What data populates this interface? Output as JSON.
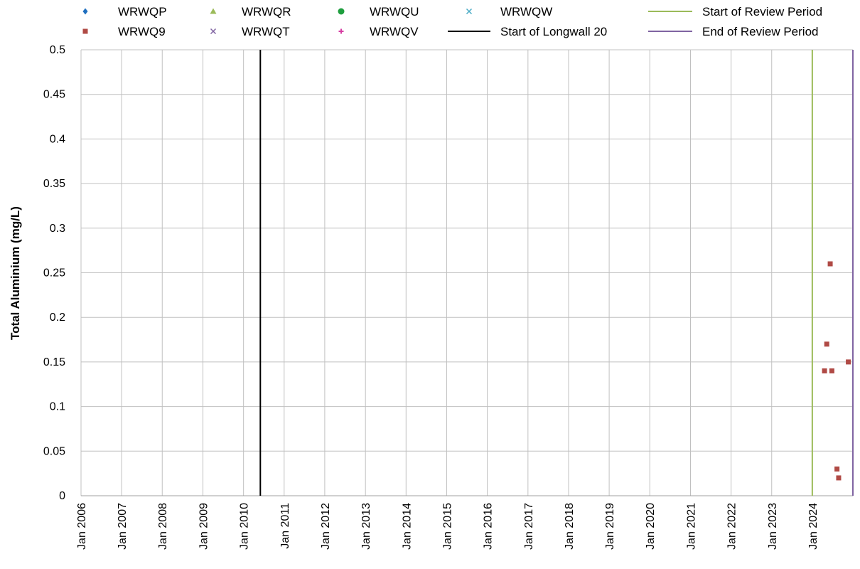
{
  "chart_data": {
    "type": "scatter",
    "title": "",
    "ylabel": "Total Aluminium (mg/L)",
    "xlabel": "",
    "ylim": [
      0,
      0.5
    ],
    "y_ticks": [
      "0",
      "0.05",
      "0.1",
      "0.15",
      "0.2",
      "0.25",
      "0.3",
      "0.35",
      "0.4",
      "0.45",
      "0.5"
    ],
    "xlim": [
      "2006-01-01",
      "2024-12-31"
    ],
    "x_ticks": [
      "Jan 2006",
      "Jan 2007",
      "Jan 2008",
      "Jan 2009",
      "Jan 2010",
      "Jan 2011",
      "Jan 2012",
      "Jan 2013",
      "Jan 2014",
      "Jan 2015",
      "Jan 2016",
      "Jan 2017",
      "Jan 2018",
      "Jan 2019",
      "Jan 2020",
      "Jan 2021",
      "Jan 2022",
      "Jan 2023",
      "Jan 2024"
    ],
    "grid": true,
    "legend_position": "top",
    "series": [
      {
        "name": "WRWQP",
        "marker": "diamond",
        "color": "#1f6fbf",
        "points": []
      },
      {
        "name": "WRWQ9",
        "marker": "square",
        "color": "#b04a45",
        "points": [
          {
            "x": "2024-04-20",
            "y": 0.14
          },
          {
            "x": "2024-05-10",
            "y": 0.17
          },
          {
            "x": "2024-06-10",
            "y": 0.26
          },
          {
            "x": "2024-06-25",
            "y": 0.14
          },
          {
            "x": "2024-08-10",
            "y": 0.03
          },
          {
            "x": "2024-08-25",
            "y": 0.02
          },
          {
            "x": "2024-11-20",
            "y": 0.15
          }
        ]
      },
      {
        "name": "WRWQR",
        "marker": "triangle",
        "color": "#9bbb59",
        "points": []
      },
      {
        "name": "WRWQT",
        "marker": "x",
        "color": "#8064a2",
        "points": []
      },
      {
        "name": "WRWQU",
        "marker": "circle",
        "color": "#1e9e3e",
        "points": []
      },
      {
        "name": "WRWQV",
        "marker": "plus",
        "color": "#d63ea3",
        "points": []
      },
      {
        "name": "WRWQW",
        "marker": "x",
        "color": "#4bacc6",
        "points": []
      }
    ],
    "reference_lines": [
      {
        "name": "Start of Longwall 20",
        "x": "2010-06-01",
        "color": "#000000"
      },
      {
        "name": "Start of Review Period",
        "x": "2024-01-01",
        "color": "#9bbb59"
      },
      {
        "name": "End of Review Period",
        "x": "2024-12-31",
        "color": "#8064a2"
      }
    ]
  }
}
